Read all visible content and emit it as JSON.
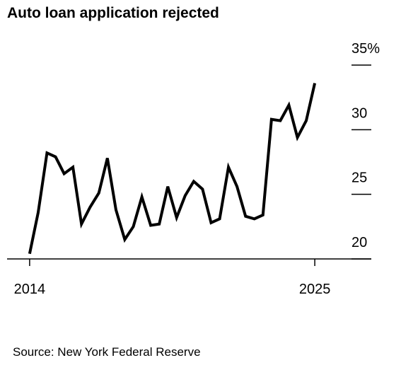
{
  "chart_data": {
    "type": "line",
    "title": "Auto loan application rejected",
    "source": "Source: New York Federal Reserve",
    "x": [
      2014,
      2014.33,
      2014.67,
      2015,
      2015.33,
      2015.67,
      2016,
      2016.33,
      2016.67,
      2017,
      2017.33,
      2017.67,
      2018,
      2018.33,
      2018.67,
      2019,
      2019.33,
      2019.67,
      2020,
      2020.33,
      2020.67,
      2021,
      2021.33,
      2021.67,
      2022,
      2022.33,
      2022.67,
      2023,
      2023.33,
      2023.67,
      2024,
      2024.33,
      2024.67,
      2025
    ],
    "values": [
      20.4,
      23.6,
      28.2,
      27.9,
      26.6,
      27.1,
      22.7,
      24.0,
      25.1,
      27.8,
      23.8,
      21.5,
      22.5,
      24.8,
      22.6,
      22.7,
      25.6,
      23.2,
      24.9,
      26.0,
      25.4,
      22.8,
      23.1,
      27.1,
      25.6,
      23.3,
      23.1,
      23.4,
      30.8,
      30.7,
      31.9,
      29.4,
      30.7,
      33.6
    ],
    "color": "#000000",
    "xlim": [
      2013.13,
      2027.18
    ],
    "xticks": [
      2014,
      2025
    ],
    "ylim": [
      20,
      35
    ],
    "yticks": [
      20,
      25,
      30,
      {
        "value": 35,
        "label": "35%"
      }
    ]
  }
}
